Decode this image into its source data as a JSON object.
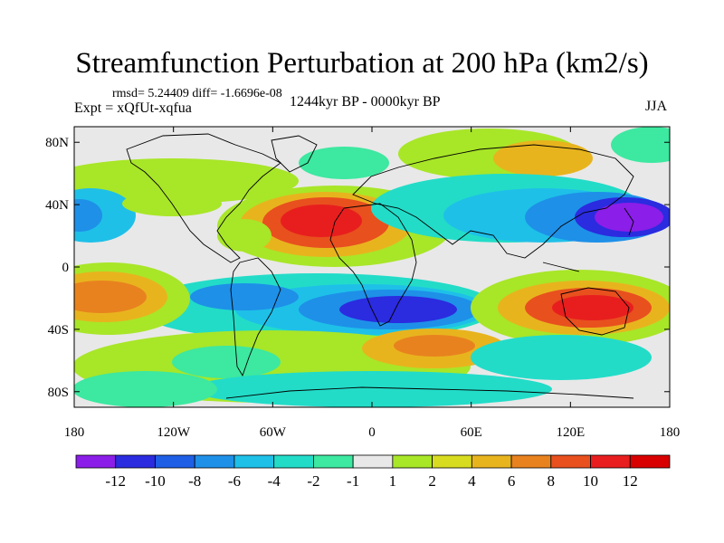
{
  "title": "Streamfunction Perturbation at 200 hPa (km2/s)",
  "stats": "rmsd= 5.24409 diff= -1.6696e-08",
  "experiment": "Expt = xQfUt-xqfua",
  "period": "1244kyr BP - 0000kyr BP",
  "season": "JJA",
  "lat_labels": [
    {
      "text": "80N",
      "lat": 80
    },
    {
      "text": "40N",
      "lat": 40
    },
    {
      "text": "0",
      "lat": 0
    },
    {
      "text": "40S",
      "lat": -40
    },
    {
      "text": "80S",
      "lat": -80
    }
  ],
  "lon_labels": [
    {
      "text": "180",
      "lon": -180
    },
    {
      "text": "120W",
      "lon": -120
    },
    {
      "text": "60W",
      "lon": -60
    },
    {
      "text": "0",
      "lon": 0
    },
    {
      "text": "60E",
      "lon": 60
    },
    {
      "text": "120E",
      "lon": 120
    },
    {
      "text": "180",
      "lon": 180
    }
  ],
  "colorbar": {
    "labels": [
      "-12",
      "-10",
      "-8",
      "-6",
      "-4",
      "-2",
      "-1",
      "1",
      "2",
      "4",
      "6",
      "8",
      "10",
      "12"
    ],
    "colors": [
      "#8b1ee8",
      "#2b2be0",
      "#1f5fe6",
      "#1e90e8",
      "#1ec0e8",
      "#22dcc8",
      "#3de8a0",
      "#e8e8e8",
      "#a8e628",
      "#d8dc20",
      "#e8b41e",
      "#e8821e",
      "#e8501e",
      "#e81e1e",
      "#d80000"
    ]
  },
  "field_features": [
    {
      "name": "n-atlantic-africa-high",
      "lon": -30,
      "lat": 32,
      "value": 12
    },
    {
      "name": "nw-pacific-low",
      "lon": 150,
      "lat": 35,
      "value": -12
    },
    {
      "name": "south-atlantic-low",
      "lon": 10,
      "lat": -28,
      "value": -11
    },
    {
      "name": "australia-high",
      "lon": 130,
      "lat": -28,
      "value": 11
    },
    {
      "name": "se-pacific-high",
      "lon": -170,
      "lat": -15,
      "value": 8
    },
    {
      "name": "n-pacific-low",
      "lon": -180,
      "lat": 35,
      "value": -8
    },
    {
      "name": "siberia-high",
      "lon": 100,
      "lat": 70,
      "value": 6
    }
  ]
}
